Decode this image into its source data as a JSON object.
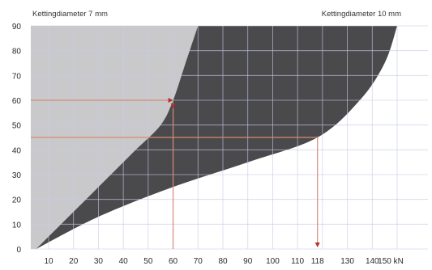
{
  "colors": {
    "background": "#ffffff",
    "left_region": "#c9c9cc",
    "curve_band": "#4a4a4d",
    "grid": "#c6cbe6",
    "guide_lines": "#d88a74",
    "arrow": "#b5322a",
    "text": "#2a2a2a"
  },
  "chart_data": {
    "type": "area",
    "title": "",
    "labels": {
      "top_left": "Kettingdiameter 7 mm",
      "top_right": "Kettingdiameter 10 mm"
    },
    "xlim": [
      0,
      150
    ],
    "ylim": [
      0,
      90
    ],
    "x_ticks": [
      "10",
      "20",
      "30",
      "40",
      "50",
      "60",
      "70",
      "80",
      "90",
      "100",
      "110",
      "118",
      "130",
      "140",
      "150 kN"
    ],
    "y_ticks": [
      "0",
      "10",
      "20",
      "30",
      "40",
      "50",
      "60",
      "70",
      "80",
      "90"
    ],
    "grid": true,
    "series": [
      {
        "role": "boundary 7 mm",
        "x": [
          5,
          15,
          25,
          35,
          45,
          55,
          60,
          65,
          70
        ],
        "y": [
          0,
          10,
          20,
          30,
          40,
          50,
          60,
          75,
          90
        ]
      },
      {
        "role": "boundary 10 mm",
        "x": [
          5,
          30,
          60,
          90,
          118,
          135,
          145,
          150
        ],
        "y": [
          0,
          13,
          25,
          35,
          45,
          60,
          75,
          90
        ]
      }
    ],
    "reading_examples": [
      {
        "y": 60,
        "x": 60
      },
      {
        "y": 45,
        "x": 118
      }
    ]
  }
}
